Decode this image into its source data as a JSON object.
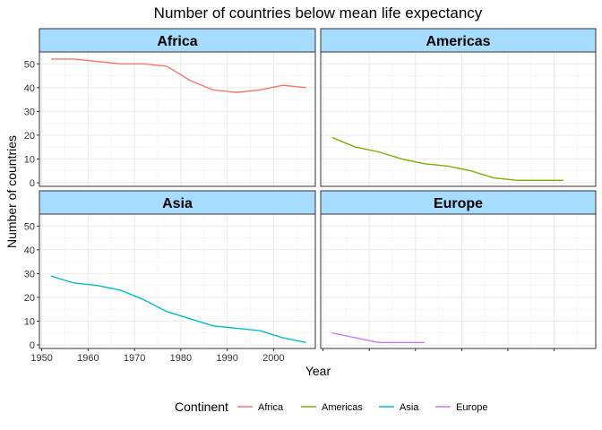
{
  "chart_data": {
    "type": "line",
    "title": "Number of countries below mean life expectancy",
    "xlabel": "Year",
    "ylabel": "Number of countries",
    "xlim": [
      1949.5,
      2009
    ],
    "ylim": [
      -1.5,
      55
    ],
    "x_ticks": [
      1950,
      1960,
      1970,
      1980,
      1990,
      2000
    ],
    "y_ticks": [
      0,
      10,
      20,
      30,
      40,
      50
    ],
    "grid": true,
    "legend": {
      "title": "Continent",
      "position": "bottom"
    },
    "panels": [
      "Africa",
      "Americas",
      "Asia",
      "Europe"
    ],
    "series": [
      {
        "name": "Africa",
        "panel": "Africa",
        "color": "#F8766D",
        "x": [
          1952,
          1957,
          1962,
          1967,
          1972,
          1977,
          1982,
          1987,
          1992,
          1997,
          2002,
          2007
        ],
        "values": [
          52,
          52,
          51,
          50,
          50,
          49,
          43,
          39,
          38,
          39,
          41,
          40
        ]
      },
      {
        "name": "Americas",
        "panel": "Americas",
        "color": "#7CAE00",
        "x": [
          1952,
          1957,
          1962,
          1967,
          1972,
          1977,
          1982,
          1987,
          1992,
          1997,
          2002
        ],
        "values": [
          19,
          15,
          13,
          10,
          8,
          7,
          5,
          2,
          1,
          1,
          1
        ]
      },
      {
        "name": "Asia",
        "panel": "Asia",
        "color": "#00BFC4",
        "x": [
          1952,
          1957,
          1962,
          1967,
          1972,
          1977,
          1982,
          1987,
          1992,
          1997,
          2002,
          2007
        ],
        "values": [
          29,
          26,
          25,
          23,
          19,
          14,
          11,
          8,
          7,
          6,
          3,
          1
        ]
      },
      {
        "name": "Europe",
        "panel": "Europe",
        "color": "#C77CFF",
        "x": [
          1952,
          1957,
          1962,
          1967,
          1972
        ],
        "values": [
          5,
          3,
          1,
          1,
          1
        ]
      }
    ]
  }
}
